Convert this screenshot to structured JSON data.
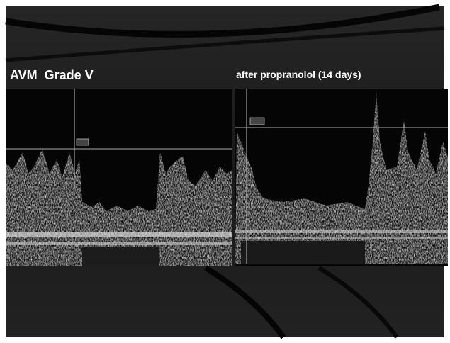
{
  "panels": [
    {
      "title": "AVM  Grade V"
    },
    {
      "title": "after propranolol (14 days)"
    }
  ]
}
